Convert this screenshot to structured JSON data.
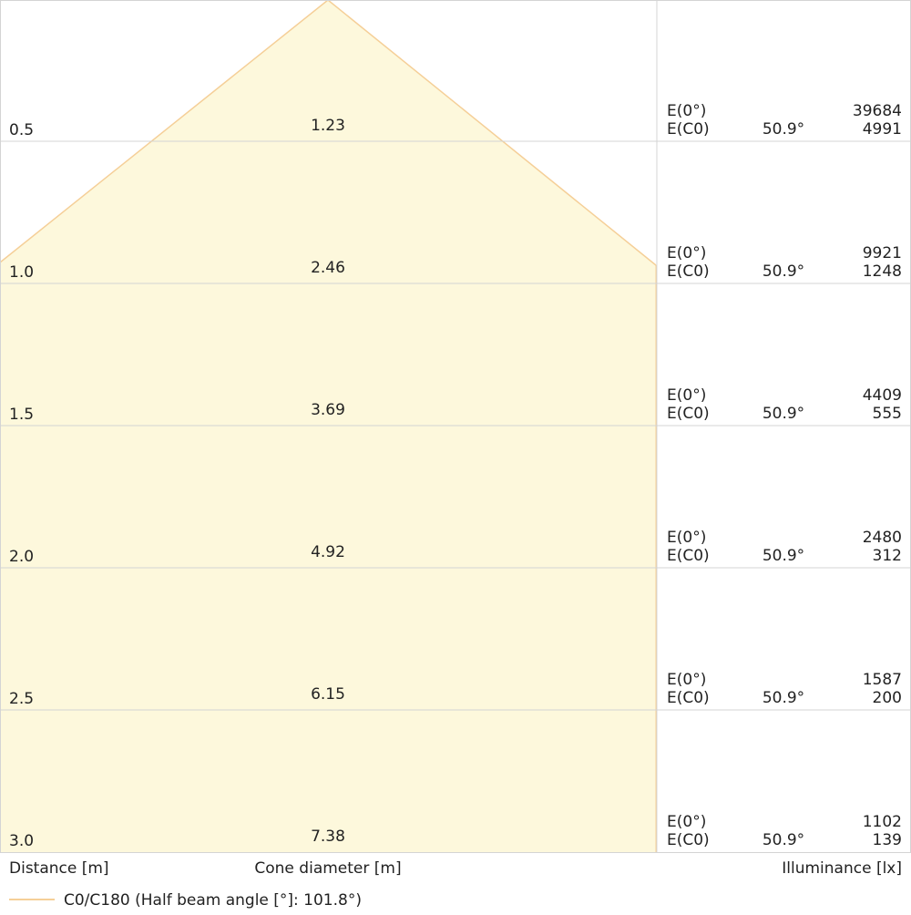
{
  "rows": [
    {
      "distance": "0.5",
      "diameter": "1.23",
      "e0_label": "E(0°)",
      "ec0_label": "E(C0)",
      "angle": "50.9°",
      "e0": "39684",
      "ec0": "4991"
    },
    {
      "distance": "1.0",
      "diameter": "2.46",
      "e0_label": "E(0°)",
      "ec0_label": "E(C0)",
      "angle": "50.9°",
      "e0": "9921",
      "ec0": "1248"
    },
    {
      "distance": "1.5",
      "diameter": "3.69",
      "e0_label": "E(0°)",
      "ec0_label": "E(C0)",
      "angle": "50.9°",
      "e0": "4409",
      "ec0": "555"
    },
    {
      "distance": "2.0",
      "diameter": "4.92",
      "e0_label": "E(0°)",
      "ec0_label": "E(C0)",
      "angle": "50.9°",
      "e0": "2480",
      "ec0": "312"
    },
    {
      "distance": "2.5",
      "diameter": "6.15",
      "e0_label": "E(0°)",
      "ec0_label": "E(C0)",
      "angle": "50.9°",
      "e0": "1587",
      "ec0": "200"
    },
    {
      "distance": "3.0",
      "diameter": "7.38",
      "e0_label": "E(0°)",
      "ec0_label": "E(C0)",
      "angle": "50.9°",
      "e0": "1102",
      "ec0": "139"
    }
  ],
  "footer": {
    "distance": "Distance [m]",
    "diameter": "Cone diameter [m]",
    "illuminance": "Illuminance [lx]"
  },
  "legend": {
    "label": "C0/C180 (Half beam angle [°]: 101.8°)"
  }
}
